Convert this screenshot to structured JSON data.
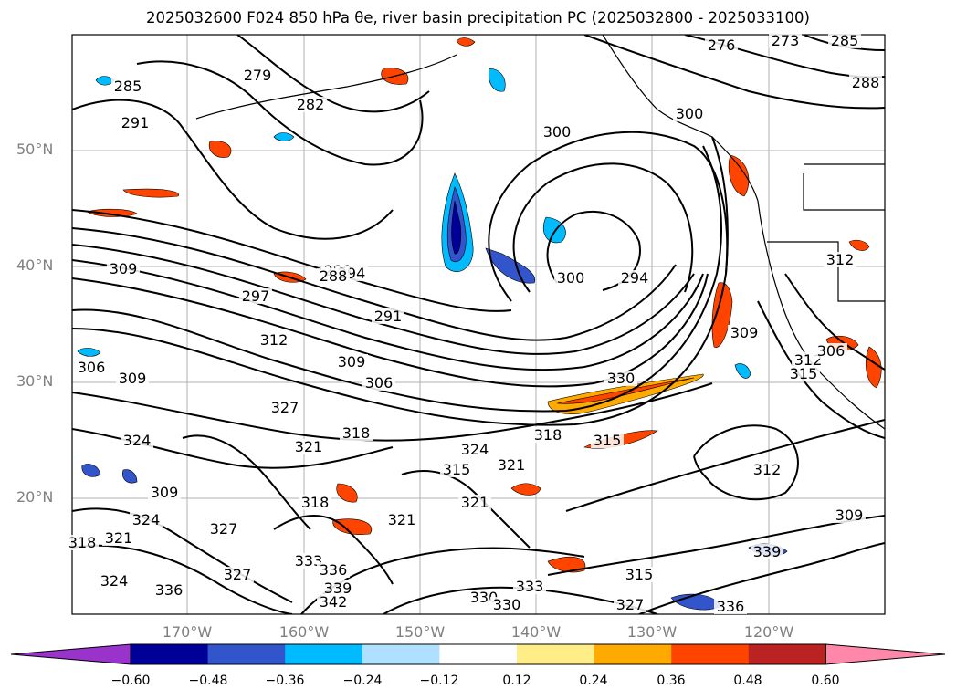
{
  "title": "2025032600 F024 850 hPa θe, river basin precipitation PC (2025032800 - 2025033100)",
  "lat_labels": [
    "50°N",
    "40°N",
    "30°N",
    "20°N"
  ],
  "lon_labels": [
    "170°W",
    "160°W",
    "150°W",
    "140°W",
    "130°W",
    "120°W"
  ],
  "colorbar": {
    "colors": [
      "#9933cc",
      "#000099",
      "#3355cc",
      "#00bbff",
      "#b0e0ff",
      "#ffffff",
      "#ffee88",
      "#ffaa00",
      "#ff4400",
      "#bb2222",
      "#ff88aa"
    ],
    "ticks": [
      "−0.60",
      "−0.48",
      "−0.36",
      "−0.24",
      "−0.12",
      "0.12",
      "0.24",
      "0.36",
      "0.48",
      "0.60"
    ]
  },
  "contour_labels": [
    "285",
    "291",
    "279",
    "282",
    "276",
    "273",
    "285",
    "288",
    "288",
    "294",
    "300",
    "300",
    "297",
    "291",
    "288",
    "300",
    "294",
    "309",
    "312",
    "306",
    "309",
    "309",
    "306",
    "327",
    "324",
    "321",
    "315",
    "318",
    "324",
    "318",
    "321",
    "312",
    "309",
    "309",
    "321",
    "315",
    "318",
    "321",
    "312",
    "327",
    "330",
    "333",
    "336",
    "339",
    "342",
    "324",
    "336",
    "333",
    "330",
    "327",
    "315",
    "336",
    "339",
    "330",
    "306",
    "315",
    "312",
    "309",
    "321",
    "318",
    "324",
    "327"
  ]
}
